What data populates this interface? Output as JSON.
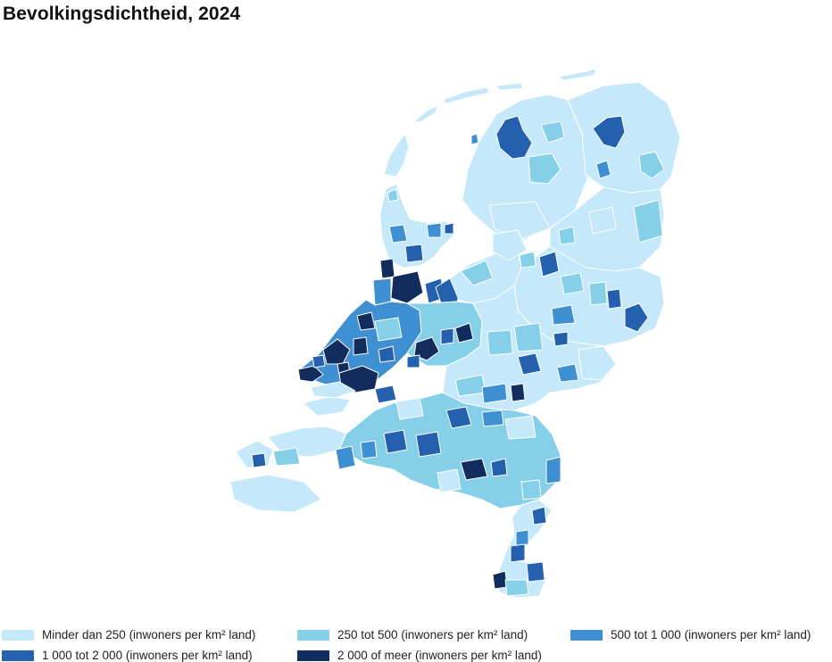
{
  "title": "Bevolkingsdichtheid, 2024",
  "colors": {
    "class1": "#c6e8fb",
    "class2": "#85cfe9",
    "class3": "#3f8fd3",
    "class4": "#2460ad",
    "class5": "#132c5e",
    "outline": "#ffffff"
  },
  "legend": [
    {
      "label": "Minder dan 250 (inwoners per km² land)",
      "color": "#c6e8fb"
    },
    {
      "label": "250 tot 500 (inwoners per km² land)",
      "color": "#85cfe9"
    },
    {
      "label": "500 tot 1 000 (inwoners per km² land)",
      "color": "#3f8fd3"
    },
    {
      "label": "1 000 tot 2 000 (inwoners per km² land)",
      "color": "#2460ad"
    },
    {
      "label": "2 000 of meer (inwoners per km² land)",
      "color": "#132c5e"
    }
  ]
}
